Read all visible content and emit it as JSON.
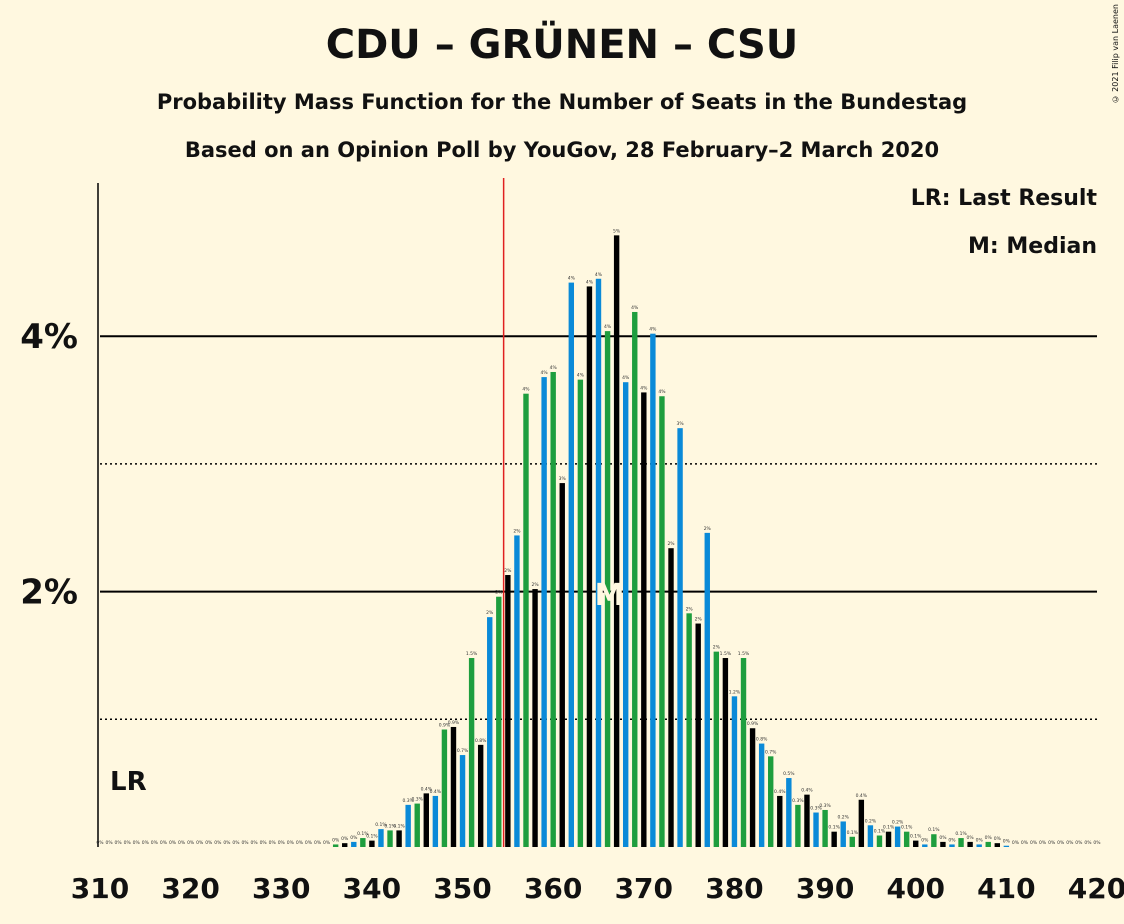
{
  "title": "CDU – GRÜNEN – CSU",
  "subtitle": "Probability Mass Function for the Number of Seats in the Bundestag",
  "subtitle2": "Based on an Opinion Poll by YouGov, 28 February–2 March 2020",
  "copyright": "© 2021 Filip van Laenen",
  "legend": {
    "lr": "LR: Last Result",
    "m": "M: Median"
  },
  "markers": {
    "lr_label": "LR",
    "median_label": "M"
  },
  "colors": {
    "black": "#000000",
    "blue": "#0A8AD8",
    "green": "#1E9E3E",
    "majority_line": "#E02020",
    "background": "#FFF8E0"
  },
  "chart_data": {
    "type": "bar",
    "x_start": 310,
    "x_end": 420,
    "xticks": [
      "310",
      "320",
      "330",
      "340",
      "350",
      "360",
      "370",
      "380",
      "390",
      "400",
      "410",
      "420"
    ],
    "yticks": [
      {
        "value": 2,
        "label": "2%"
      },
      {
        "value": 4,
        "label": "4%"
      }
    ],
    "ylim": [
      0,
      5.2
    ],
    "majority": 355,
    "last_result": 311,
    "median": 366,
    "color_cycle": [
      "black",
      "blue",
      "green"
    ],
    "values": [
      0,
      0,
      0,
      0,
      0,
      0,
      0,
      0,
      0,
      0,
      0,
      0,
      0,
      0,
      0,
      0,
      0,
      0,
      0,
      0,
      0,
      0,
      0,
      0,
      0,
      0,
      0.02,
      0.03,
      0.04,
      0.07,
      0.05,
      0.14,
      0.13,
      0.13,
      0.33,
      0.34,
      0.42,
      0.4,
      0.92,
      0.94,
      0.72,
      1.48,
      0.8,
      1.8,
      1.96,
      2.13,
      2.44,
      3.55,
      2.02,
      3.68,
      3.72,
      2.85,
      4.42,
      3.66,
      4.39,
      4.45,
      4.04,
      4.79,
      3.64,
      4.19,
      3.56,
      4.02,
      3.53,
      2.34,
      3.28,
      1.83,
      1.75,
      2.46,
      1.53,
      1.48,
      1.18,
      1.48,
      0.93,
      0.81,
      0.71,
      0.4,
      0.54,
      0.33,
      0.41,
      0.27,
      0.29,
      0.12,
      0.2,
      0.08,
      0.37,
      0.17,
      0.09,
      0.12,
      0.16,
      0.12,
      0.05,
      0.02,
      0.1,
      0.04,
      0.02,
      0.07,
      0.04,
      0.02,
      0.04,
      0.03,
      0.01,
      0,
      0,
      0,
      0,
      0,
      0,
      0,
      0,
      0,
      0
    ],
    "bar_labels": [
      "0%",
      "0%",
      "0%",
      "0%",
      "0%",
      "0%",
      "0%",
      "0%",
      "0%",
      "0%",
      "0%",
      "0%",
      "0%",
      "0%",
      "0%",
      "0%",
      "0%",
      "0%",
      "0%",
      "0%",
      "0%",
      "0%",
      "0%",
      "0%",
      "0%",
      "0%",
      "0%",
      "0%",
      "0%",
      "0.1%",
      "0.1%",
      "0.1%",
      "0.1%",
      "0.1%",
      "0.3%",
      "0.3%",
      "0.4%",
      "0.4%",
      "0.9%",
      "0.9%",
      "0.7%",
      "1.5%",
      "0.8%",
      "2%",
      "2%",
      "2%",
      "2%",
      "4%",
      "2%",
      "4%",
      "4%",
      "3%",
      "4%",
      "4%",
      "4%",
      "4%",
      "4%",
      "5%",
      "4%",
      "4%",
      "4%",
      "4%",
      "4%",
      "2%",
      "3%",
      "2%",
      "2%",
      "2%",
      "2%",
      "1.5%",
      "1.2%",
      "1.5%",
      "0.9%",
      "0.8%",
      "0.7%",
      "0.4%",
      "0.5%",
      "0.3%",
      "0.4%",
      "0.3%",
      "0.3%",
      "0.1%",
      "0.2%",
      "0.1%",
      "0.4%",
      "0.2%",
      "0.1%",
      "0.1%",
      "0.2%",
      "0.1%",
      "0.1%",
      "0%",
      "0.1%",
      "0%",
      "0%",
      "0.1%",
      "0%",
      "0%",
      "0%",
      "0%",
      "0%",
      "0%",
      "0%",
      "0%",
      "0%",
      "0%",
      "0%",
      "0%",
      "0%",
      "0%",
      "0%"
    ]
  }
}
